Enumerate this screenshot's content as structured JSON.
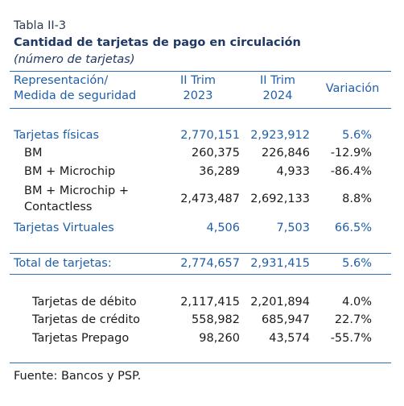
{
  "header": {
    "label": "Tabla II-3",
    "title": "Cantidad de tarjetas de pago en circulación",
    "subtitle": "(número de tarjetas)"
  },
  "table": {
    "columns": [
      [
        "Representación/",
        "Medida de seguridad"
      ],
      [
        "II Trim",
        "2023"
      ],
      [
        "II Trim",
        "2024"
      ],
      [
        "Variación"
      ]
    ],
    "rows": [
      [
        [
          "Tarjetas físicas"
        ],
        "2,770,151",
        "2,923,912",
        "5.6%"
      ],
      [
        [
          "BM"
        ],
        "260,375",
        "226,846",
        "-12.9%"
      ],
      [
        [
          "BM + Microchip"
        ],
        "36,289",
        "4,933",
        "-86.4%"
      ],
      [
        [
          "BM + Microchip +",
          "Contactless"
        ],
        "2,473,487",
        "2,692,133",
        "8.8%"
      ],
      [
        [
          "Tarjetas Virtuales"
        ],
        "4,506",
        "7,503",
        "66.5%"
      ],
      [
        [
          "Total de tarjetas:"
        ],
        "2,774,657",
        "2,931,415",
        "5.6%"
      ],
      [
        [
          "Tarjetas de débito"
        ],
        "2,117,415",
        "2,201,894",
        "4.0%"
      ],
      [
        [
          "Tarjetas de crédito"
        ],
        "558,982",
        "685,947",
        "22.7%"
      ],
      [
        [
          "Tarjetas Prepago"
        ],
        "98,260",
        "43,574",
        "-55.7%"
      ]
    ]
  },
  "footer": {
    "source": "Fuente: Bancos y PSP."
  }
}
